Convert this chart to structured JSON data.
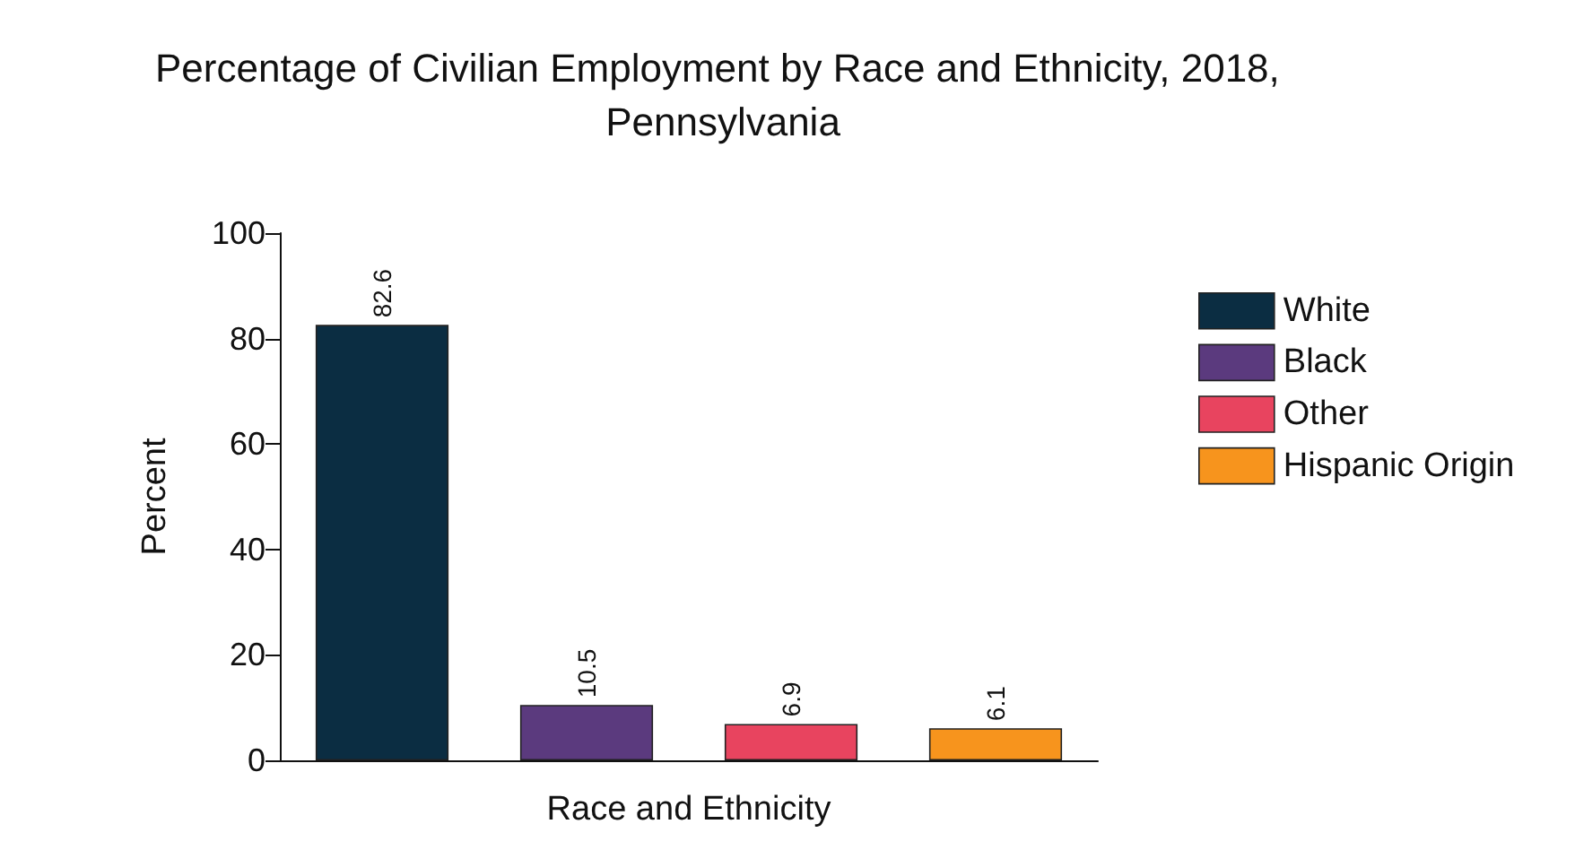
{
  "chart_data": {
    "type": "bar",
    "title": "Percentage of Civilian Employment by Race and Ethnicity, 2018, Pennsylvania",
    "xlabel": "Race and Ethnicity",
    "ylabel": "Percent",
    "categories": [
      null,
      null,
      null,
      null
    ],
    "series": [
      {
        "name": "White",
        "color": "#0b2d42",
        "values": [
          82.6,
          null,
          null,
          null
        ]
      },
      {
        "name": "Black",
        "color": "#5b3a7e",
        "values": [
          null,
          10.5,
          null,
          null
        ]
      },
      {
        "name": "Other",
        "color": "#e8445f",
        "values": [
          null,
          null,
          6.9,
          null
        ]
      },
      {
        "name": "Hispanic Origin",
        "color": "#f7941d",
        "values": [
          null,
          null,
          null,
          6.1
        ]
      }
    ],
    "ylim": [
      0,
      100
    ],
    "yticks": [
      0,
      20,
      40,
      60,
      80,
      100
    ],
    "grid": false,
    "legend": "right",
    "data_labels": true
  }
}
